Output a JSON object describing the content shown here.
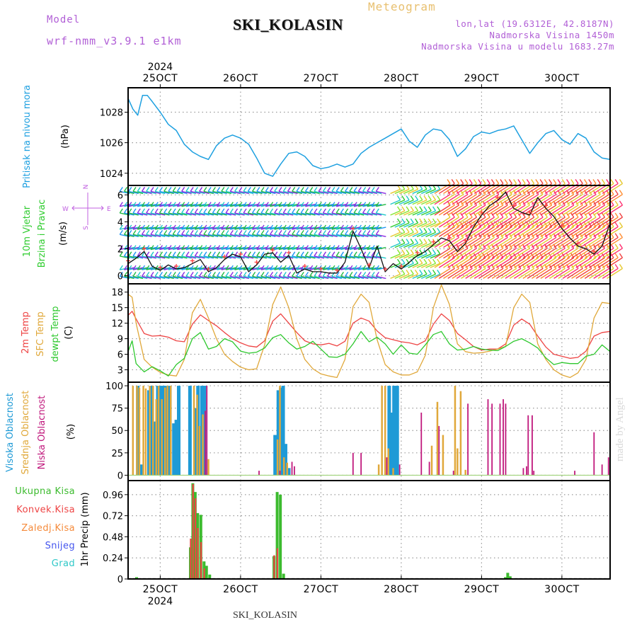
{
  "header": {
    "model_label": "Model",
    "model_value": "wrf-nmm_v3.9.1  e1km",
    "station": "SKI_KOLASIN",
    "meteogram": "Meteogram",
    "lonlat": "lon,lat (19.6312E, 42.8187N)",
    "elevation": "Nadmorska Visina 1450m",
    "model_elevation": "Nadmorska Visina u modelu 1683.27m"
  },
  "footer": {
    "station": "SKI_KOLASIN",
    "credit": "made by Angel"
  },
  "time_axis": {
    "year": "2024",
    "tick_labels": [
      "25OCT",
      "26OCT",
      "27OCT",
      "28OCT",
      "29OCT",
      "30OCT"
    ]
  },
  "colors": {
    "pressure": "#1ea0e0",
    "temp2m": "#ee4444",
    "sfc_temp": "#e0a83a",
    "dewpt": "#2ec82e",
    "cloud_high": "#1e9ad6",
    "cloud_mid": "#e0a83a",
    "cloud_low": "#c0187c",
    "precip_total": "#3cbb2e",
    "precip_conv": "#ee4444",
    "precip_frozen": "#f58a3a",
    "snow": "#4455ee",
    "hail": "#2ec8c8",
    "wind_label": "#2ecc2e",
    "wind_scale": "#c060e0"
  },
  "chart_data": [
    {
      "type": "line",
      "id": "pressure",
      "title": "Pritisak na nivou mora",
      "ylabel": "(hPa)",
      "ylim": [
        1023.2,
        1029.6
      ],
      "yticks": [
        "1024",
        "1026",
        "1028"
      ],
      "ytick_values": [
        1024,
        1026,
        1028
      ],
      "xlim": [
        24.6,
        30.6
      ],
      "series": [
        {
          "x": [
            24.6,
            24.66,
            24.72,
            24.78,
            24.84,
            24.9,
            25.0,
            25.1,
            25.2,
            25.3,
            25.4,
            25.5,
            25.6,
            25.7,
            25.8,
            25.9,
            26.0,
            26.1,
            26.2,
            26.3,
            26.4,
            26.5,
            26.6,
            26.7,
            26.8,
            26.9,
            27.0,
            27.1,
            27.2,
            27.3,
            27.4,
            27.5,
            27.6,
            27.7,
            27.8,
            27.9,
            28.0,
            28.1,
            28.2,
            28.3,
            28.4,
            28.5,
            28.6,
            28.7,
            28.8,
            28.9,
            29.0,
            29.1,
            29.2,
            29.3,
            29.4,
            29.5,
            29.6,
            29.7,
            29.8,
            29.9,
            30.0,
            30.1,
            30.2,
            30.3,
            30.4,
            30.5,
            30.6
          ],
          "y": [
            1028.9,
            1028.2,
            1027.8,
            1029.1,
            1029.1,
            1028.7,
            1028.0,
            1027.2,
            1026.8,
            1025.9,
            1025.4,
            1025.1,
            1024.9,
            1025.8,
            1026.3,
            1026.5,
            1026.3,
            1025.9,
            1025.0,
            1024.0,
            1023.8,
            1024.6,
            1025.3,
            1025.4,
            1025.1,
            1024.5,
            1024.3,
            1024.4,
            1024.6,
            1024.4,
            1024.6,
            1025.3,
            1025.7,
            1026.0,
            1026.3,
            1026.6,
            1026.9,
            1026.1,
            1025.7,
            1026.5,
            1026.9,
            1026.8,
            1026.2,
            1025.1,
            1025.6,
            1026.4,
            1026.7,
            1026.6,
            1026.8,
            1026.9,
            1027.1,
            1026.2,
            1025.3,
            1026.0,
            1026.6,
            1026.8,
            1026.2,
            1025.9,
            1026.6,
            1026.3,
            1025.4,
            1025.0,
            1024.9
          ]
        }
      ]
    },
    {
      "type": "line",
      "id": "wind",
      "title": "10m Vjetar",
      "subtitle": "Brzina i Pravac",
      "ylabel": "(m/s)",
      "direction_scale": {
        "north": "N",
        "south": "S",
        "west": "W",
        "east": "E"
      },
      "ylim": [
        -0.6,
        6.7
      ],
      "yticks": [
        "0",
        "2",
        "4",
        "6"
      ],
      "ytick_values": [
        0,
        2,
        4,
        6
      ],
      "xlim": [
        24.6,
        30.6
      ],
      "series": [
        {
          "x": [
            24.6,
            24.7,
            24.8,
            24.9,
            25.0,
            25.1,
            25.2,
            25.3,
            25.4,
            25.5,
            25.6,
            25.7,
            25.8,
            25.9,
            26.0,
            26.1,
            26.2,
            26.3,
            26.4,
            26.5,
            26.6,
            26.7,
            26.8,
            26.9,
            27.0,
            27.1,
            27.2,
            27.3,
            27.4,
            27.5,
            27.6,
            27.7,
            27.8,
            27.9,
            28.0,
            28.1,
            28.2,
            28.3,
            28.4,
            28.5,
            28.6,
            28.7,
            28.8,
            28.9,
            29.0,
            29.1,
            29.2,
            29.3,
            29.4,
            29.5,
            29.6,
            29.7,
            29.8,
            29.9,
            30.0,
            30.1,
            30.2,
            30.3,
            30.4,
            30.5,
            30.6
          ],
          "y": [
            0.9,
            1.3,
            1.8,
            0.7,
            0.4,
            0.8,
            0.5,
            0.6,
            0.9,
            1.2,
            0.3,
            0.6,
            1.2,
            1.6,
            1.4,
            0.3,
            0.8,
            1.6,
            1.7,
            1.0,
            1.5,
            0.2,
            0.5,
            0.3,
            0.3,
            0.2,
            0.2,
            1.0,
            3.3,
            2.0,
            0.6,
            2.2,
            0.3,
            0.9,
            0.5,
            1.0,
            1.5,
            1.8,
            2.3,
            2.8,
            2.6,
            1.8,
            2.4,
            3.6,
            4.5,
            5.2,
            5.6,
            6.2,
            5.0,
            4.7,
            4.5,
            5.8,
            5.0,
            4.4,
            3.5,
            2.8,
            2.2,
            2.0,
            1.6,
            2.2,
            3.9
          ]
        }
      ]
    },
    {
      "type": "line",
      "id": "temperature",
      "title": "2m Temp",
      "ylabel": "(C)",
      "ylim": [
        0.6,
        19.6
      ],
      "yticks": [
        "3",
        "6",
        "9",
        "12",
        "15",
        "18"
      ],
      "ytick_values": [
        3,
        6,
        9,
        12,
        15,
        18
      ],
      "xlim": [
        24.6,
        30.6
      ],
      "series": [
        {
          "name": "2m Temp",
          "x": [
            24.6,
            24.65,
            24.7,
            24.8,
            24.9,
            25.0,
            25.1,
            25.2,
            25.3,
            25.4,
            25.5,
            25.6,
            25.7,
            25.8,
            25.9,
            26.0,
            26.1,
            26.2,
            26.3,
            26.4,
            26.5,
            26.6,
            26.7,
            26.8,
            26.9,
            27.0,
            27.1,
            27.2,
            27.3,
            27.4,
            27.5,
            27.6,
            27.7,
            27.8,
            27.9,
            28.0,
            28.1,
            28.2,
            28.3,
            28.4,
            28.5,
            28.6,
            28.7,
            28.8,
            28.9,
            29.0,
            29.1,
            29.2,
            29.3,
            29.4,
            29.5,
            29.6,
            29.7,
            29.8,
            29.9,
            30.0,
            30.1,
            30.2,
            30.3,
            30.4,
            30.5,
            30.6
          ],
          "y": [
            13.5,
            14.3,
            12.8,
            10.0,
            9.5,
            9.6,
            9.3,
            8.6,
            8.4,
            11.8,
            13.6,
            12.5,
            11.5,
            10.2,
            9.0,
            8.2,
            7.6,
            7.4,
            8.6,
            12.4,
            13.8,
            12.0,
            10.2,
            8.6,
            8.0,
            7.8,
            8.1,
            7.6,
            8.5,
            12.0,
            13.0,
            12.4,
            10.5,
            9.2,
            8.8,
            8.4,
            8.2,
            7.8,
            8.6,
            11.8,
            13.8,
            12.5,
            10.0,
            8.8,
            7.5,
            6.8,
            7.0,
            7.0,
            8.0,
            11.6,
            12.8,
            11.8,
            9.5,
            7.4,
            6.0,
            5.6,
            5.2,
            5.4,
            6.6,
            9.5,
            10.2,
            10.4
          ]
        },
        {
          "name": "SFC Temp",
          "x": [
            24.6,
            24.65,
            24.7,
            24.8,
            24.9,
            25.0,
            25.1,
            25.2,
            25.3,
            25.4,
            25.5,
            25.6,
            25.7,
            25.8,
            25.9,
            26.0,
            26.1,
            26.2,
            26.3,
            26.4,
            26.5,
            26.6,
            26.7,
            26.8,
            26.9,
            27.0,
            27.1,
            27.2,
            27.3,
            27.4,
            27.5,
            27.6,
            27.7,
            27.8,
            27.9,
            28.0,
            28.1,
            28.2,
            28.3,
            28.4,
            28.5,
            28.6,
            28.7,
            28.8,
            28.9,
            29.0,
            29.1,
            29.2,
            29.3,
            29.4,
            29.5,
            29.6,
            29.7,
            29.8,
            29.9,
            30.0,
            30.1,
            30.2,
            30.3,
            30.4,
            30.5,
            30.6
          ],
          "y": [
            17.6,
            17.0,
            12.0,
            5.0,
            3.5,
            2.5,
            2.0,
            1.8,
            5.0,
            14.0,
            16.6,
            13.0,
            9.0,
            6.0,
            4.6,
            3.5,
            3.0,
            3.2,
            7.8,
            15.6,
            19.0,
            15.0,
            9.0,
            5.0,
            3.2,
            2.2,
            1.8,
            1.5,
            5.0,
            15.2,
            17.6,
            16.0,
            8.8,
            4.0,
            2.6,
            2.0,
            2.0,
            2.6,
            5.8,
            15.0,
            19.4,
            15.6,
            8.0,
            6.5,
            6.2,
            6.3,
            6.6,
            7.0,
            7.5,
            15.0,
            17.6,
            16.0,
            8.0,
            5.0,
            3.0,
            2.0,
            1.5,
            2.4,
            5.0,
            13.0,
            16.0,
            15.8
          ]
        },
        {
          "name": "dewpt Temp",
          "x": [
            24.6,
            24.65,
            24.7,
            24.8,
            24.9,
            25.0,
            25.1,
            25.2,
            25.3,
            25.4,
            25.5,
            25.6,
            25.7,
            25.8,
            25.9,
            26.0,
            26.1,
            26.2,
            26.3,
            26.4,
            26.5,
            26.6,
            26.7,
            26.8,
            26.9,
            27.0,
            27.1,
            27.2,
            27.3,
            27.4,
            27.5,
            27.6,
            27.7,
            27.8,
            27.9,
            28.0,
            28.1,
            28.2,
            28.3,
            28.4,
            28.5,
            28.6,
            28.7,
            28.8,
            28.9,
            29.0,
            29.1,
            29.2,
            29.3,
            29.4,
            29.5,
            29.6,
            29.7,
            29.8,
            29.9,
            30.0,
            30.1,
            30.2,
            30.3,
            30.4,
            30.5,
            30.6
          ],
          "y": [
            6.5,
            8.6,
            4.2,
            2.6,
            3.6,
            2.8,
            1.8,
            4.0,
            5.2,
            9.0,
            10.2,
            7.0,
            7.5,
            9.0,
            8.4,
            6.6,
            6.2,
            6.4,
            7.2,
            9.2,
            9.8,
            8.2,
            7.0,
            7.5,
            8.5,
            7.0,
            5.5,
            5.4,
            6.0,
            8.0,
            10.4,
            8.4,
            9.3,
            8.0,
            6.0,
            7.8,
            6.2,
            6.0,
            7.8,
            9.8,
            10.4,
            8.0,
            6.8,
            7.0,
            7.5,
            7.0,
            6.8,
            6.7,
            7.5,
            8.5,
            9.0,
            8.2,
            7.2,
            5.3,
            4.0,
            4.4,
            4.2,
            4.2,
            5.6,
            6.0,
            7.8,
            6.5
          ]
        }
      ],
      "legend": [
        "2m Temp",
        "SFC Temp",
        "dewpt Temp"
      ]
    },
    {
      "type": "bar",
      "id": "clouds",
      "title": "Visoka Oblacnost",
      "ylabel": "(%)",
      "ylim": [
        -6,
        104
      ],
      "yticks": [
        "0",
        "25",
        "50",
        "75",
        "100"
      ],
      "ytick_values": [
        0,
        25,
        50,
        75,
        100
      ],
      "xlim": [
        24.6,
        30.6
      ],
      "series": [
        {
          "name": "Visoka Oblacnost",
          "x": [
            24.72,
            24.76,
            24.86,
            24.9,
            24.93,
            24.97,
            25.0,
            25.03,
            25.07,
            25.12,
            25.17,
            25.2,
            25.23,
            25.37,
            25.44,
            25.47,
            25.52,
            25.55,
            26.43,
            26.47,
            26.5,
            26.53,
            26.56,
            26.6,
            27.85,
            27.88,
            27.91,
            27.95
          ],
          "y": [
            100,
            12,
            95,
            100,
            60,
            100,
            100,
            100,
            100,
            100,
            58,
            62,
            100,
            100,
            75,
            100,
            100,
            100,
            45,
            95,
            98,
            100,
            35,
            8,
            100,
            70,
            100,
            100
          ]
        },
        {
          "name": "Srednja Oblacnost",
          "x": [
            24.66,
            24.71,
            24.74,
            24.79,
            24.82,
            24.87,
            24.91,
            24.95,
            24.98,
            25.02,
            25.06,
            25.09,
            25.13,
            25.42,
            25.46,
            25.49,
            25.53,
            25.6,
            26.46,
            26.49,
            26.54,
            26.58,
            27.72,
            27.76,
            27.8,
            27.84,
            27.9,
            28.38,
            28.45,
            28.52,
            28.67,
            28.7,
            28.74,
            28.8
          ],
          "y": [
            100,
            100,
            98,
            100,
            97,
            100,
            100,
            85,
            100,
            85,
            98,
            100,
            100,
            100,
            90,
            55,
            68,
            18,
            40,
            100,
            20,
            14,
            12,
            100,
            100,
            30,
            8,
            33,
            82,
            45,
            100,
            30,
            94,
            6
          ]
        },
        {
          "name": "Niska Oblacnost",
          "x": [
            25.56,
            25.58,
            26.23,
            26.49,
            26.64,
            26.67,
            27.4,
            27.5,
            27.82,
            27.98,
            28.25,
            28.35,
            28.47,
            28.65,
            28.83,
            29.08,
            29.13,
            29.23,
            29.27,
            29.3,
            29.52,
            29.56,
            29.58,
            29.63,
            29.65,
            30.16,
            30.4,
            30.5,
            30.58
          ],
          "y": [
            72,
            100,
            5,
            5,
            15,
            10,
            25,
            25,
            20,
            12,
            70,
            15,
            55,
            5,
            80,
            85,
            80,
            80,
            85,
            80,
            8,
            10,
            67,
            67,
            5,
            5,
            48,
            12,
            20
          ]
        }
      ]
    },
    {
      "type": "bar",
      "id": "precip",
      "title": "1hr Precip",
      "ylabel": "1hr Precip (mm)",
      "ylim": [
        0,
        1.12
      ],
      "yticks": [
        "0",
        "0.24",
        "0.48",
        "0.72",
        "0.96"
      ],
      "ytick_values": [
        0,
        0.24,
        0.48,
        0.72,
        0.96
      ],
      "xlim": [
        24.6,
        30.6
      ],
      "series": [
        {
          "name": "Ukupna Kisa",
          "x": [
            24.71,
            25.38,
            25.41,
            25.44,
            25.47,
            25.51,
            25.55,
            25.58,
            25.62,
            26.42,
            26.46,
            26.5,
            26.54,
            29.3,
            29.33,
            29.36
          ],
          "y": [
            0.02,
            0.36,
            1.09,
            0.99,
            0.75,
            0.73,
            0.2,
            0.15,
            0.05,
            0.26,
            0.99,
            0.96,
            0.06,
            0.02,
            0.07,
            0.03
          ]
        },
        {
          "name": "Konvek.Kisa",
          "x": [
            25.39,
            25.42,
            25.45,
            25.48,
            25.52,
            25.56,
            26.43,
            26.47
          ],
          "y": [
            0.46,
            1.08,
            0.92,
            0.58,
            0.42,
            0.12,
            0.27,
            0.35
          ]
        },
        {
          "name": "Zaledj.Kisa",
          "x": [],
          "y": []
        },
        {
          "name": "Snijeg",
          "x": [],
          "y": []
        },
        {
          "name": "Grad",
          "x": [],
          "y": []
        }
      ]
    }
  ]
}
